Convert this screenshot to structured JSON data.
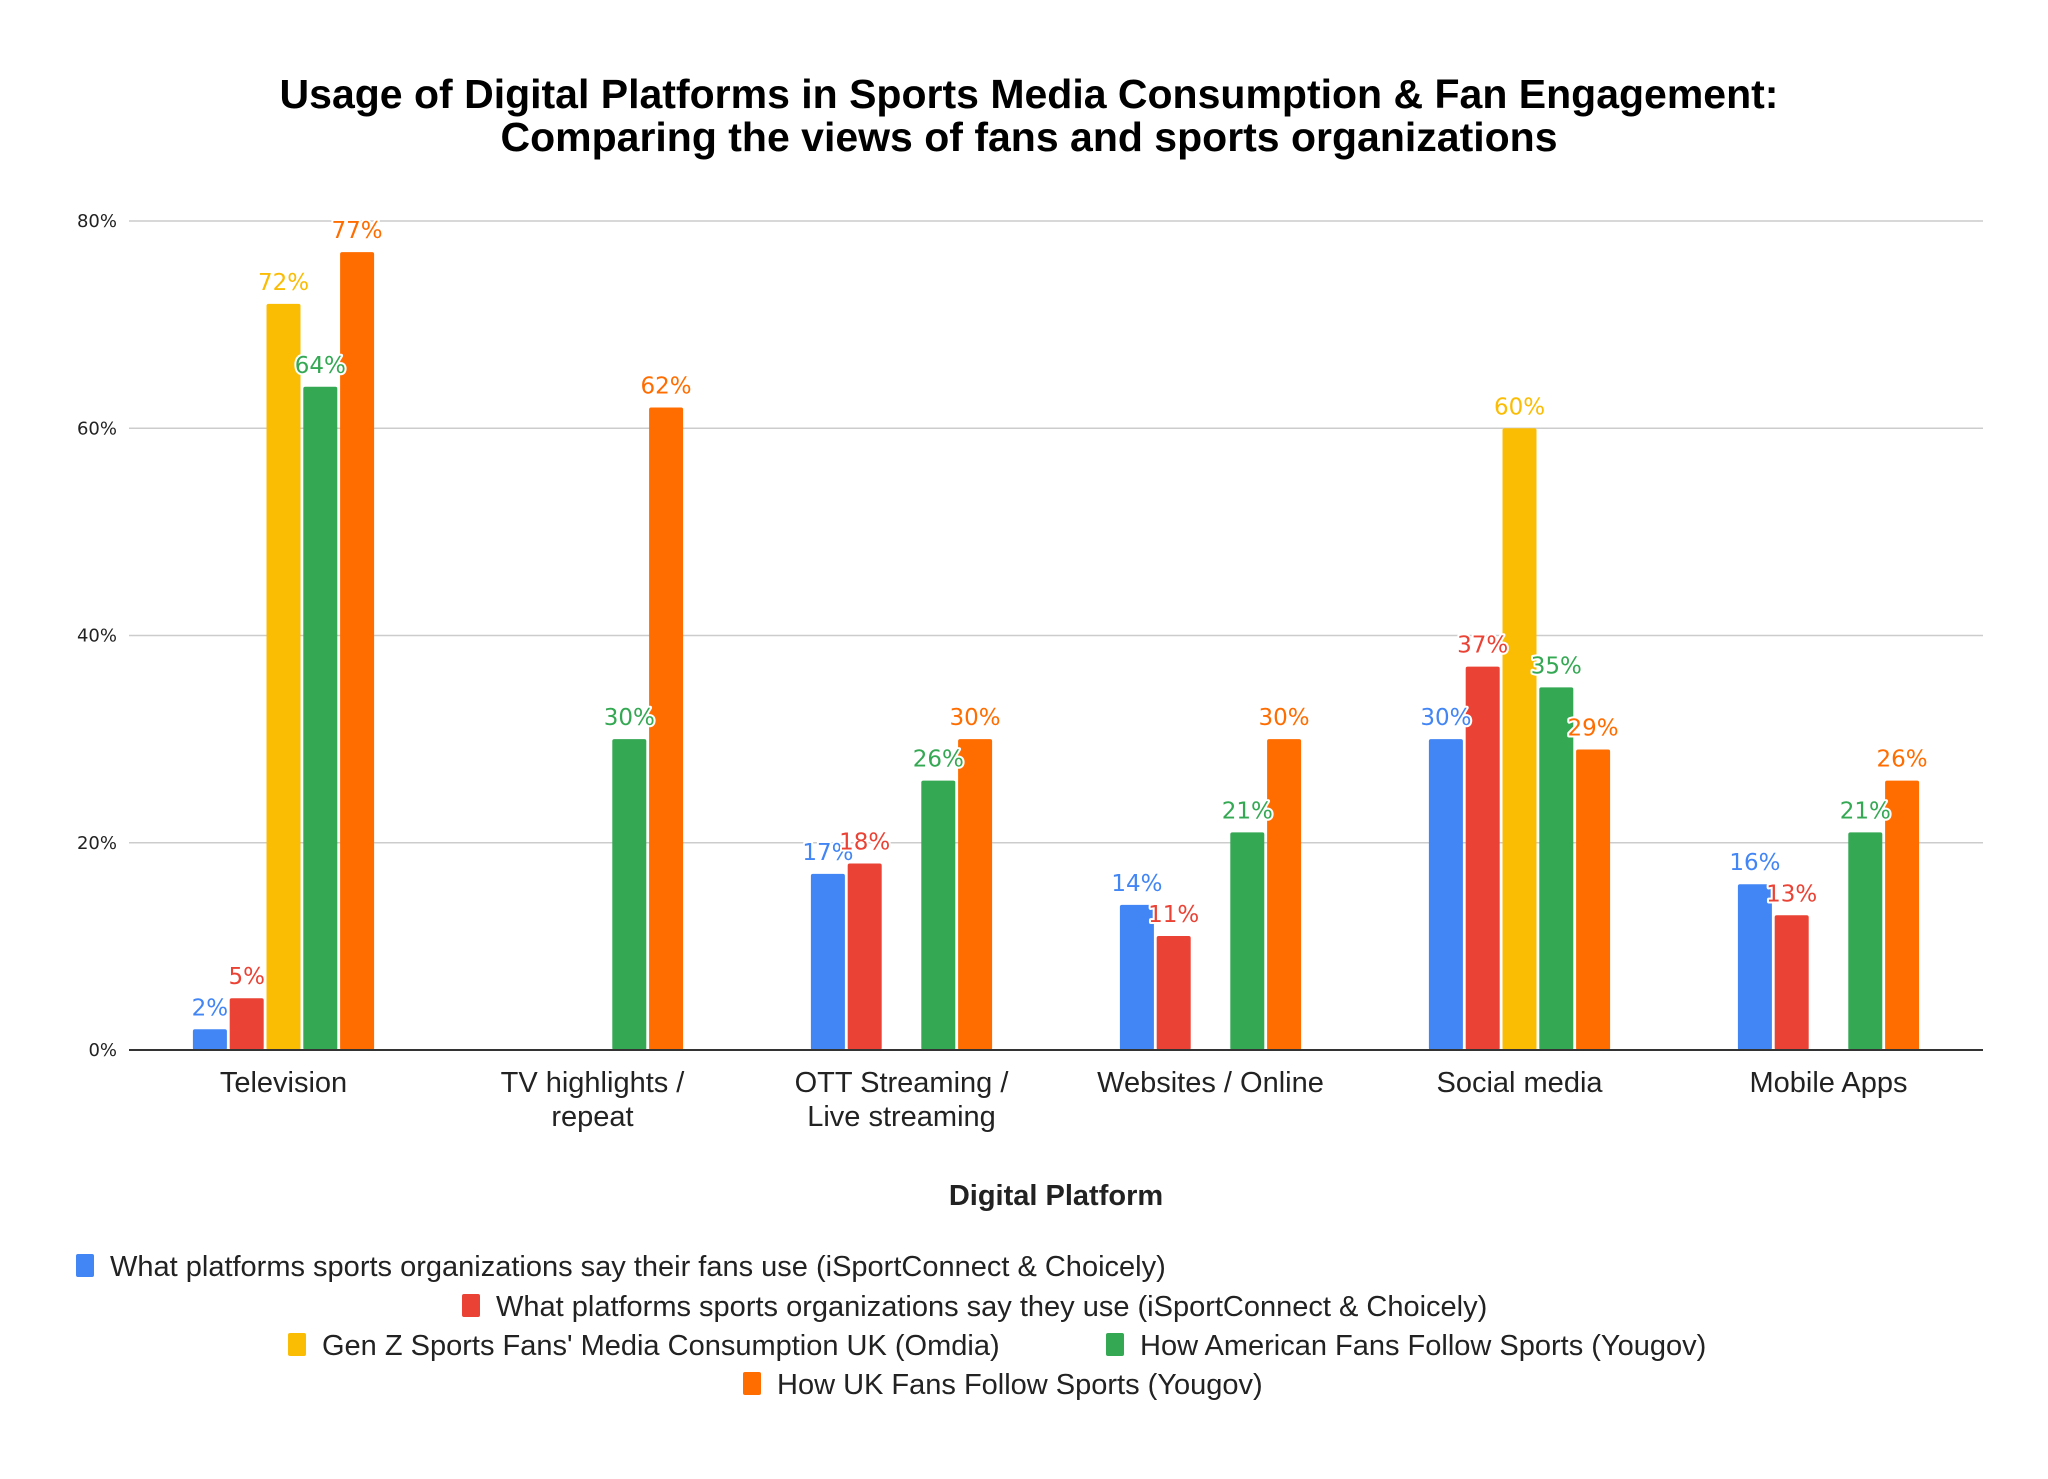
{
  "chart_data": {
    "type": "bar",
    "title": "Usage of Digital Platforms in Sports Media Consumption & Fan Engagement:",
    "subtitle": "Comparing the views of fans and sports organizations",
    "xlabel": "Digital Platform",
    "ylabel": "",
    "ylim": [
      0,
      80
    ],
    "yticks": [
      "0%",
      "20%",
      "40%",
      "60%",
      "80%"
    ],
    "ytick_values": [
      0,
      20,
      40,
      60,
      80
    ],
    "grid": true,
    "legend_position": "bottom",
    "categories": [
      [
        "Television"
      ],
      [
        "TV highlights /",
        "repeat"
      ],
      [
        "OTT Streaming /",
        "Live streaming"
      ],
      [
        "Websites / Online"
      ],
      [
        "Social media"
      ],
      [
        "Mobile Apps"
      ]
    ],
    "series": [
      {
        "name": "What platforms sports organizations say their fans use (iSportConnect & Choicely)",
        "color": "#4285f4",
        "values": [
          2,
          null,
          17,
          14,
          30,
          16
        ]
      },
      {
        "name": "What platforms sports organizations say they use (iSportConnect & Choicely)",
        "color": "#ea4335",
        "values": [
          5,
          null,
          18,
          11,
          37,
          13
        ]
      },
      {
        "name": "Gen Z Sports Fans' Media Consumption UK (Omdia)",
        "color": "#fbbc04",
        "values": [
          72,
          null,
          null,
          null,
          60,
          null
        ]
      },
      {
        "name": "How American Fans Follow Sports (Yougov)",
        "color": "#34a853",
        "values": [
          64,
          30,
          26,
          21,
          35,
          21
        ]
      },
      {
        "name": "How UK Fans Follow Sports (Yougov)",
        "color": "#ff6d01",
        "values": [
          77,
          62,
          30,
          30,
          29,
          26
        ]
      }
    ],
    "value_suffix": "%"
  }
}
